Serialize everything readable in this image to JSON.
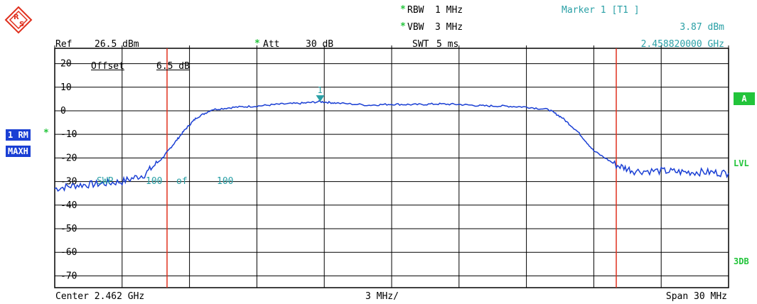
{
  "header": {
    "rbw_label": "RBW",
    "rbw_value": "1 MHz",
    "vbw_label": "VBW",
    "vbw_value": "3 MHz",
    "swt_label": "SWT",
    "swt_value": "5 ms",
    "ref_label": "Ref",
    "ref_value": "26.5 dBm",
    "att_label": "Att",
    "att_value": "30 dB",
    "marker_title": "Marker 1 [T1 ]",
    "marker_level": "3.87 dBm",
    "marker_freq": "2.458820000 GHz",
    "changed_star": "*"
  },
  "overlay": {
    "offset_label": "Offset",
    "offset_value": "6.5 dB",
    "sweep_label": "SWP",
    "sweep_done": "100",
    "sweep_of": "of",
    "sweep_total": "100",
    "marker_number": "1"
  },
  "trace_info": {
    "trace_label": "1 RM",
    "detector": "MAXH",
    "changed_star": "*"
  },
  "right_labels": {
    "trace_a": "A",
    "lvl": "LVL",
    "db3": "3DB"
  },
  "footer": {
    "center": "Center 2.462 GHz",
    "per_div": "3 MHz/",
    "span": "Span 30 MHz"
  },
  "colors": {
    "trace": "#1a3fd4",
    "display_line": "#e0301e",
    "marker": "#2aa0a6",
    "status_green": "#22c43a",
    "grid": "#000000"
  },
  "chart_data": {
    "type": "line",
    "x_center_ghz": 2.462,
    "span_mhz": 30,
    "xlim_mhz": [
      2447,
      2477
    ],
    "ylim_db": [
      -75,
      26.5
    ],
    "y_ticks": [
      "20",
      "10",
      "0",
      "-10",
      "-20",
      "-30",
      "-40",
      "-50",
      "-60",
      "-70"
    ],
    "y_tick_values": [
      20,
      10,
      0,
      -10,
      -20,
      -30,
      -40,
      -50,
      -60,
      -70
    ],
    "vertical_lines_mhz": [
      2452,
      2472
    ],
    "marker": {
      "x_mhz": 2458.82,
      "y_dbm": 3.87
    },
    "series": [
      {
        "x_mhz": [
          2447,
          2448,
          2449,
          2450,
          2451,
          2451.8,
          2452.3,
          2452.8,
          2453.3,
          2454,
          2455,
          2456,
          2457,
          2458,
          2458.82,
          2459.5,
          2461,
          2462,
          2463,
          2464,
          2465,
          2466,
          2467,
          2468,
          2469,
          2469.6,
          2470.3,
          2471,
          2472,
          2472.8,
          2474,
          2475,
          2476,
          2477
        ],
        "y_dbm": [
          -33,
          -31.5,
          -31,
          -30,
          -27,
          -20,
          -14,
          -8,
          -3,
          0.5,
          1.5,
          2,
          2.8,
          3.2,
          3.87,
          3.3,
          2.4,
          2.8,
          2.6,
          2.9,
          2.7,
          2.1,
          2,
          1.6,
          0.5,
          -3,
          -9,
          -17,
          -23,
          -25.5,
          -25.5,
          -26,
          -26,
          -26.5
        ]
      }
    ]
  }
}
